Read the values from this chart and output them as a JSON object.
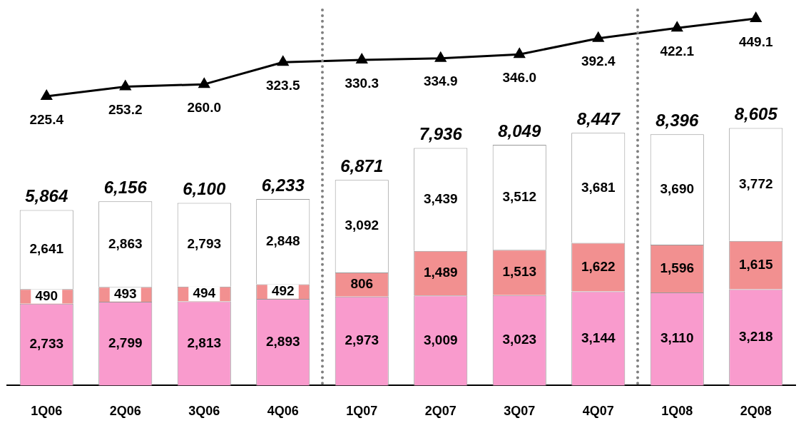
{
  "chart_data": {
    "type": "bar",
    "stacked": true,
    "categories": [
      "1Q06",
      "2Q06",
      "3Q06",
      "4Q06",
      "1Q07",
      "2Q07",
      "3Q07",
      "4Q07",
      "1Q08",
      "2Q08"
    ],
    "series": [
      {
        "color": "#f99bcd",
        "values": [
          2733,
          2799,
          2813,
          2893,
          2973,
          3009,
          3023,
          3144,
          3110,
          3218
        ],
        "value_labels": [
          "2,733",
          "2,799",
          "2,813",
          "2,893",
          "2,973",
          "3,009",
          "3,023",
          "3,144",
          "3,110",
          "3,218"
        ]
      },
      {
        "color": "#f29090",
        "values": [
          490,
          493,
          494,
          492,
          806,
          1489,
          1513,
          1622,
          1596,
          1615
        ],
        "value_labels": [
          "490",
          "493",
          "494",
          "492",
          "806",
          "1,489",
          "1,513",
          "1,622",
          "1,596",
          "1,615"
        ]
      },
      {
        "color": "#ffffff",
        "values": [
          2641,
          2863,
          2793,
          2848,
          3092,
          3439,
          3512,
          3681,
          3690,
          3772
        ],
        "value_labels": [
          "2,641",
          "2,863",
          "2,793",
          "2,848",
          "3,092",
          "3,439",
          "3,512",
          "3,681",
          "3,690",
          "3,772"
        ]
      },
      {
        "type": "line",
        "axis": "y2",
        "color": "#000000",
        "marker": "triangle",
        "values": [
          225.4,
          253.2,
          260.0,
          323.5,
          330.3,
          334.9,
          346.0,
          392.4,
          422.1,
          449.1
        ],
        "value_labels": [
          "225.4",
          "253.2",
          "260.0",
          "323.5",
          "330.3",
          "334.9",
          "346.0",
          "392.4",
          "422.1",
          "449.1"
        ]
      }
    ],
    "totals": [
      "5,864",
      "6,156",
      "6,100",
      "6,233",
      "6,871",
      "7,936",
      "8,049",
      "8,447",
      "8,396",
      "8,605"
    ],
    "ylim": [
      0,
      12600
    ],
    "y2lim": [
      -607,
      478
    ],
    "tick_labels": "x",
    "grid": false,
    "legend": false
  }
}
